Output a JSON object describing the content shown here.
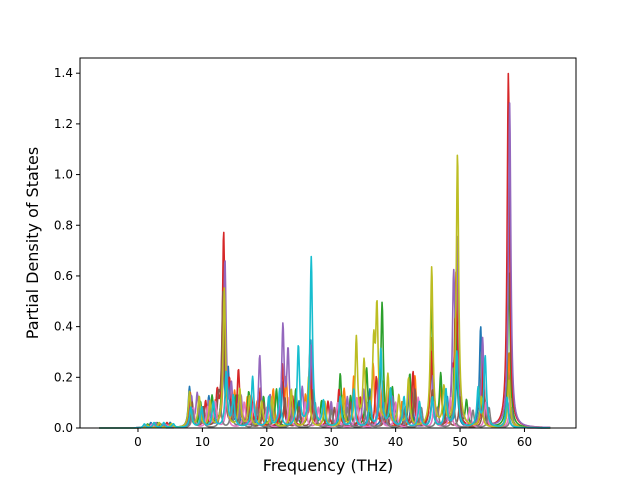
{
  "chart_data": {
    "type": "line",
    "title": "",
    "xlabel": "Frequency (THz)",
    "ylabel": "Partial Density of States",
    "xlim": [
      -9,
      68
    ],
    "ylim": [
      0,
      1.46
    ],
    "xticks": [
      0,
      10,
      20,
      30,
      40,
      50,
      60
    ],
    "yticks": [
      0.0,
      0.2,
      0.4,
      0.6,
      0.8,
      1.0,
      1.2,
      1.4
    ],
    "xtick_labels": [
      "0",
      "10",
      "20",
      "30",
      "40",
      "50",
      "60"
    ],
    "ytick_labels": [
      "0.0",
      "0.2",
      "0.4",
      "0.6",
      "0.8",
      "1.0",
      "1.2",
      "1.4"
    ],
    "grid": false,
    "legend": "none",
    "x_range": [
      -6,
      64
    ],
    "series": [
      {
        "color": "#1f77b4",
        "peaks": [
          [
            1,
            0.01
          ],
          [
            2,
            0.02
          ],
          [
            3.5,
            0.015
          ],
          [
            5,
            0.02
          ],
          [
            8,
            0.16
          ],
          [
            9.5,
            0.1
          ],
          [
            11,
            0.12
          ],
          [
            13.2,
            0.3
          ],
          [
            14,
            0.22
          ],
          [
            15.5,
            0.12
          ],
          [
            17.5,
            0.1
          ],
          [
            19,
            0.14
          ],
          [
            22.5,
            0.18
          ],
          [
            25,
            0.1
          ],
          [
            26.8,
            0.35
          ],
          [
            30,
            0.07
          ],
          [
            31.5,
            0.12
          ],
          [
            34,
            0.1
          ],
          [
            36,
            0.15
          ],
          [
            38,
            0.12
          ],
          [
            40,
            0.08
          ],
          [
            42.5,
            0.15
          ],
          [
            45.5,
            0.25
          ],
          [
            48,
            0.12
          ],
          [
            49.5,
            0.2
          ],
          [
            53.2,
            0.4
          ],
          [
            57.5,
            0.22
          ]
        ]
      },
      {
        "color": "#ff7f0e",
        "peaks": [
          [
            1,
            0.01
          ],
          [
            2.5,
            0.02
          ],
          [
            4,
            0.015
          ],
          [
            8.2,
            0.1
          ],
          [
            10,
            0.08
          ],
          [
            12,
            0.1
          ],
          [
            13.4,
            0.35
          ],
          [
            15,
            0.14
          ],
          [
            17,
            0.12
          ],
          [
            18.5,
            0.1
          ],
          [
            21,
            0.15
          ],
          [
            23,
            0.2
          ],
          [
            26,
            0.12
          ],
          [
            27,
            0.25
          ],
          [
            29,
            0.08
          ],
          [
            32,
            0.15
          ],
          [
            33.5,
            0.2
          ],
          [
            36.5,
            0.25
          ],
          [
            38,
            0.18
          ],
          [
            41,
            0.1
          ],
          [
            43,
            0.2
          ],
          [
            45.6,
            0.35
          ],
          [
            47,
            0.15
          ],
          [
            49.5,
            0.4
          ],
          [
            53.5,
            0.2
          ],
          [
            57.6,
            0.3
          ]
        ]
      },
      {
        "color": "#2ca02c",
        "peaks": [
          [
            1.5,
            0.015
          ],
          [
            3,
            0.02
          ],
          [
            5,
            0.015
          ],
          [
            8,
            0.12
          ],
          [
            9.7,
            0.1
          ],
          [
            11.5,
            0.12
          ],
          [
            13.3,
            0.5
          ],
          [
            15.2,
            0.12
          ],
          [
            17.2,
            0.14
          ],
          [
            19.5,
            0.12
          ],
          [
            21.5,
            0.15
          ],
          [
            24.5,
            0.15
          ],
          [
            26.8,
            0.3
          ],
          [
            28.5,
            0.1
          ],
          [
            31.4,
            0.21
          ],
          [
            33,
            0.12
          ],
          [
            35.5,
            0.23
          ],
          [
            37.9,
            0.49
          ],
          [
            39.5,
            0.15
          ],
          [
            42.2,
            0.21
          ],
          [
            45.6,
            0.51
          ],
          [
            47,
            0.2
          ],
          [
            49.3,
            0.5
          ],
          [
            51,
            0.1
          ],
          [
            53.4,
            0.3
          ],
          [
            57.6,
            0.62
          ]
        ]
      },
      {
        "color": "#d62728",
        "peaks": [
          [
            1,
            0.01
          ],
          [
            2.5,
            0.015
          ],
          [
            4.5,
            0.02
          ],
          [
            8.1,
            0.14
          ],
          [
            10.5,
            0.1
          ],
          [
            12.3,
            0.12
          ],
          [
            13.3,
            0.76
          ],
          [
            14.2,
            0.15
          ],
          [
            15.6,
            0.22
          ],
          [
            17.6,
            0.12
          ],
          [
            19,
            0.15
          ],
          [
            22.4,
            0.25
          ],
          [
            24,
            0.12
          ],
          [
            26.7,
            0.3
          ],
          [
            29.5,
            0.1
          ],
          [
            31.2,
            0.15
          ],
          [
            34.5,
            0.12
          ],
          [
            37,
            0.2
          ],
          [
            39,
            0.15
          ],
          [
            42.7,
            0.22
          ],
          [
            45.5,
            0.3
          ],
          [
            48.8,
            0.18
          ],
          [
            49.4,
            0.6
          ],
          [
            53.6,
            0.25
          ],
          [
            57.5,
            1.4
          ]
        ]
      },
      {
        "color": "#9467bd",
        "peaks": [
          [
            1.2,
            0.01
          ],
          [
            2.8,
            0.02
          ],
          [
            4.2,
            0.015
          ],
          [
            8.3,
            0.12
          ],
          [
            9.2,
            0.13
          ],
          [
            11,
            0.1
          ],
          [
            13.5,
            0.66
          ],
          [
            14.5,
            0.15
          ],
          [
            16,
            0.12
          ],
          [
            18.9,
            0.28
          ],
          [
            20.5,
            0.12
          ],
          [
            22.5,
            0.39
          ],
          [
            23.3,
            0.29
          ],
          [
            25.5,
            0.15
          ],
          [
            26.9,
            0.32
          ],
          [
            30,
            0.1
          ],
          [
            32.5,
            0.12
          ],
          [
            35,
            0.15
          ],
          [
            37.4,
            0.2
          ],
          [
            39.5,
            0.12
          ],
          [
            42,
            0.15
          ],
          [
            45.8,
            0.2
          ],
          [
            49,
            0.54
          ],
          [
            49.6,
            0.69
          ],
          [
            53.5,
            0.35
          ],
          [
            57.7,
            1.28
          ]
        ]
      },
      {
        "color": "#8c564b",
        "peaks": [
          [
            1.5,
            0.01
          ],
          [
            3.5,
            0.015
          ],
          [
            8.4,
            0.1
          ],
          [
            10.2,
            0.08
          ],
          [
            12.5,
            0.1
          ],
          [
            13.2,
            0.53
          ],
          [
            15,
            0.1
          ],
          [
            17,
            0.08
          ],
          [
            19.5,
            0.1
          ],
          [
            22.8,
            0.12
          ],
          [
            25,
            0.08
          ],
          [
            27.2,
            0.15
          ],
          [
            30.5,
            0.08
          ],
          [
            33,
            0.1
          ],
          [
            36,
            0.12
          ],
          [
            38.5,
            0.1
          ],
          [
            41.5,
            0.08
          ],
          [
            43,
            0.15
          ],
          [
            45.7,
            0.15
          ],
          [
            48,
            0.1
          ],
          [
            50,
            0.12
          ],
          [
            53.7,
            0.15
          ],
          [
            57.4,
            0.1
          ]
        ]
      },
      {
        "color": "#e377c2",
        "peaks": [
          [
            1,
            0.01
          ],
          [
            2.2,
            0.015
          ],
          [
            4.8,
            0.01
          ],
          [
            8.6,
            0.08
          ],
          [
            10.8,
            0.08
          ],
          [
            12,
            0.1
          ],
          [
            13.8,
            0.12
          ],
          [
            16.5,
            0.1
          ],
          [
            18,
            0.1
          ],
          [
            20,
            0.08
          ],
          [
            23.5,
            0.12
          ],
          [
            26,
            0.1
          ],
          [
            28,
            0.08
          ],
          [
            31,
            0.1
          ],
          [
            34,
            0.12
          ],
          [
            37.5,
            0.15
          ],
          [
            40,
            0.1
          ],
          [
            43.5,
            0.12
          ],
          [
            46,
            0.1
          ],
          [
            48.5,
            0.12
          ],
          [
            51.5,
            0.08
          ],
          [
            54,
            0.1
          ],
          [
            57.8,
            0.12
          ]
        ]
      },
      {
        "color": "#7f7f7f",
        "peaks": [
          [
            1.3,
            0.01
          ],
          [
            3,
            0.015
          ],
          [
            8.5,
            0.07
          ],
          [
            10,
            0.06
          ],
          [
            12.8,
            0.08
          ],
          [
            14.5,
            0.08
          ],
          [
            16,
            0.07
          ],
          [
            18.5,
            0.08
          ],
          [
            21,
            0.07
          ],
          [
            24,
            0.08
          ],
          [
            27.5,
            0.1
          ],
          [
            30,
            0.07
          ],
          [
            32.5,
            0.08
          ],
          [
            35.5,
            0.1
          ],
          [
            38.2,
            0.1
          ],
          [
            41,
            0.07
          ],
          [
            44,
            0.08
          ],
          [
            46.5,
            0.08
          ],
          [
            49,
            0.1
          ],
          [
            52,
            0.07
          ],
          [
            54.5,
            0.08
          ],
          [
            58,
            0.08
          ]
        ]
      },
      {
        "color": "#bcbd22",
        "peaks": [
          [
            1.5,
            0.01
          ],
          [
            3.3,
            0.02
          ],
          [
            5.2,
            0.015
          ],
          [
            8,
            0.14
          ],
          [
            9.5,
            0.12
          ],
          [
            11.2,
            0.1
          ],
          [
            13.4,
            0.55
          ],
          [
            15.8,
            0.15
          ],
          [
            17.3,
            0.12
          ],
          [
            19.2,
            0.1
          ],
          [
            20.8,
            0.12
          ],
          [
            23.8,
            0.15
          ],
          [
            26.5,
            0.2
          ],
          [
            29,
            0.1
          ],
          [
            31.8,
            0.12
          ],
          [
            33.9,
            0.35
          ],
          [
            35.1,
            0.25
          ],
          [
            36.6,
            0.3
          ],
          [
            37.1,
            0.45
          ],
          [
            38.8,
            0.2
          ],
          [
            40.5,
            0.12
          ],
          [
            42,
            0.19
          ],
          [
            45.6,
            0.63
          ],
          [
            47.5,
            0.15
          ],
          [
            49.6,
            1.08
          ],
          [
            53.3,
            0.12
          ],
          [
            57.6,
            0.19
          ]
        ]
      },
      {
        "color": "#17becf",
        "peaks": [
          [
            1,
            0.015
          ],
          [
            2.5,
            0.02
          ],
          [
            4,
            0.02
          ],
          [
            5.5,
            0.015
          ],
          [
            8.2,
            0.08
          ],
          [
            9.9,
            0.08
          ],
          [
            11.7,
            0.1
          ],
          [
            13.7,
            0.22
          ],
          [
            14.8,
            0.12
          ],
          [
            17.8,
            0.2
          ],
          [
            20.3,
            0.12
          ],
          [
            22,
            0.15
          ],
          [
            24.9,
            0.32
          ],
          [
            26.9,
            0.67
          ],
          [
            28.8,
            0.1
          ],
          [
            31.4,
            0.12
          ],
          [
            33.5,
            0.15
          ],
          [
            36,
            0.1
          ],
          [
            37.7,
            0.31
          ],
          [
            39.2,
            0.15
          ],
          [
            41.3,
            0.12
          ],
          [
            43.7,
            0.1
          ],
          [
            45.7,
            0.12
          ],
          [
            47.8,
            0.15
          ],
          [
            49.5,
            0.3
          ],
          [
            52.8,
            0.15
          ],
          [
            53.9,
            0.28
          ],
          [
            57.3,
            0.12
          ]
        ]
      }
    ]
  }
}
